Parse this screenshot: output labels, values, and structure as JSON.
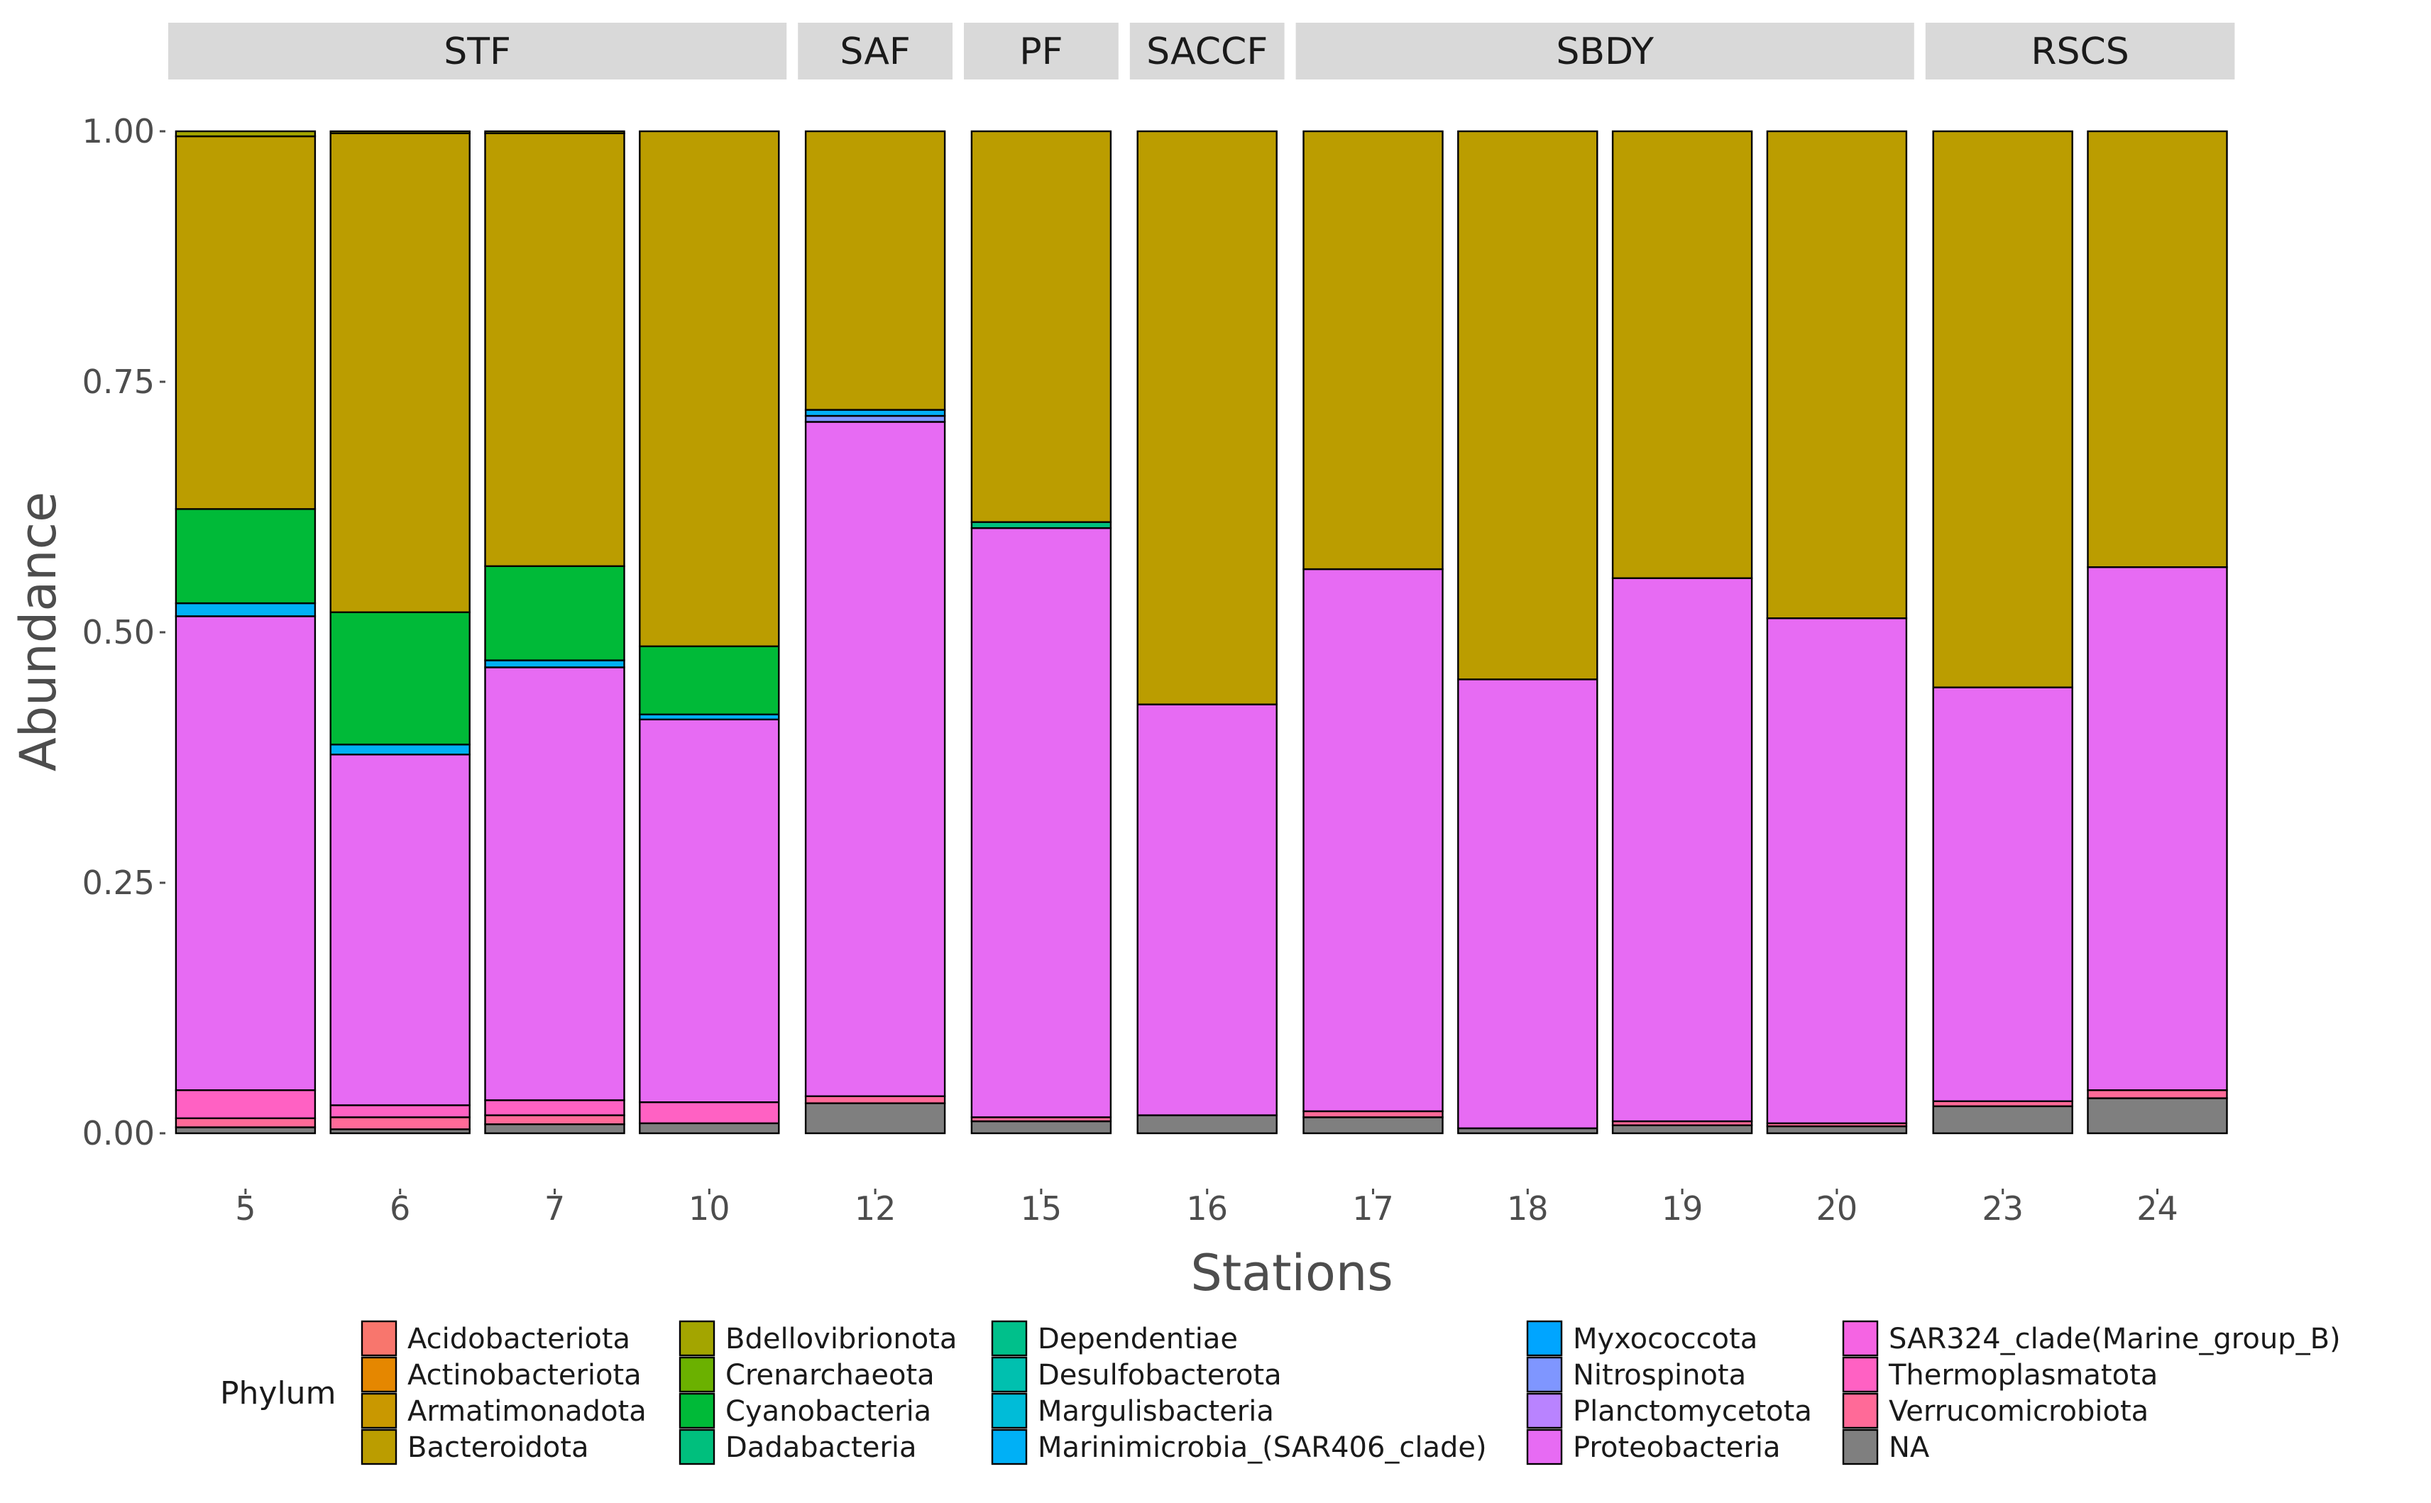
{
  "chart_data": {
    "type": "bar",
    "stacked": true,
    "xlabel": "Stations",
    "ylabel": "Abundance",
    "ylim": [
      0,
      1
    ],
    "y_ticks": [
      {
        "value": 0,
        "label": "0.00"
      },
      {
        "value": 0.25,
        "label": "0.25"
      },
      {
        "value": 0.5,
        "label": "0.50"
      },
      {
        "value": 0.75,
        "label": "0.75"
      },
      {
        "value": 1,
        "label": "1.00"
      }
    ],
    "legend_title": "Phylum",
    "legend_position": "bottom",
    "phyla": [
      {
        "name": "Acidobacteriota",
        "color": "#F8766D"
      },
      {
        "name": "Actinobacteriota",
        "color": "#E58700"
      },
      {
        "name": "Armatimonadota",
        "color": "#C99800"
      },
      {
        "name": "Bacteroidota",
        "color": "#BB9D00"
      },
      {
        "name": "Bdellovibrionota",
        "color": "#A3A500"
      },
      {
        "name": "Crenarchaeota",
        "color": "#6BB100"
      },
      {
        "name": "Cyanobacteria",
        "color": "#00BA38"
      },
      {
        "name": "Dadabacteria",
        "color": "#00BF7D"
      },
      {
        "name": "Dependentiae",
        "color": "#00C08B"
      },
      {
        "name": "Desulfobacterota",
        "color": "#00C0AF"
      },
      {
        "name": "Margulisbacteria",
        "color": "#00BCD8"
      },
      {
        "name": "Marinimicrobia_(SAR406_clade)",
        "color": "#00B0F6"
      },
      {
        "name": "Myxococcota",
        "color": "#00A5FF"
      },
      {
        "name": "Nitrospinota",
        "color": "#7F96FF"
      },
      {
        "name": "Planctomycetota",
        "color": "#B983FF"
      },
      {
        "name": "Proteobacteria",
        "color": "#E76BF3"
      },
      {
        "name": "SAR324_clade(Marine_group_B)",
        "color": "#F564E3"
      },
      {
        "name": "Thermoplasmatota",
        "color": "#FF61C3"
      },
      {
        "name": "Verrucomicrobiota",
        "color": "#FF6A98"
      },
      {
        "name": "NA",
        "color": "#7F7F7F"
      }
    ],
    "panels": [
      {
        "label": "STF",
        "stations": [
          {
            "station": "5",
            "segments": [
              {
                "phylum": "NA",
                "value": 0.006
              },
              {
                "phylum": "Verrucomicrobiota",
                "value": 0.009
              },
              {
                "phylum": "Thermoplasmatota",
                "value": 0.028
              },
              {
                "phylum": "Proteobacteria",
                "value": 0.473
              },
              {
                "phylum": "Marinimicrobia_(SAR406_clade)",
                "value": 0.013
              },
              {
                "phylum": "Cyanobacteria",
                "value": 0.094
              },
              {
                "phylum": "Bacteroidota",
                "value": 0.372
              },
              {
                "phylum": "Bdellovibrionota",
                "value": 0.005
              }
            ]
          },
          {
            "station": "6",
            "segments": [
              {
                "phylum": "NA",
                "value": 0.004
              },
              {
                "phylum": "Verrucomicrobiota",
                "value": 0.012
              },
              {
                "phylum": "Thermoplasmatota",
                "value": 0.012
              },
              {
                "phylum": "Proteobacteria",
                "value": 0.35
              },
              {
                "phylum": "Marinimicrobia_(SAR406_clade)",
                "value": 0.01
              },
              {
                "phylum": "Cyanobacteria",
                "value": 0.132
              },
              {
                "phylum": "Bacteroidota",
                "value": 0.478
              },
              {
                "phylum": "Bdellovibrionota",
                "value": 0.002
              }
            ]
          },
          {
            "station": "7",
            "segments": [
              {
                "phylum": "NA",
                "value": 0.009
              },
              {
                "phylum": "Verrucomicrobiota",
                "value": 0.009
              },
              {
                "phylum": "Thermoplasmatota",
                "value": 0.015
              },
              {
                "phylum": "Proteobacteria",
                "value": 0.432
              },
              {
                "phylum": "Marinimicrobia_(SAR406_clade)",
                "value": 0.007
              },
              {
                "phylum": "Cyanobacteria",
                "value": 0.094
              },
              {
                "phylum": "Bacteroidota",
                "value": 0.432
              },
              {
                "phylum": "Bdellovibrionota",
                "value": 0.002
              }
            ]
          },
          {
            "station": "10",
            "segments": [
              {
                "phylum": "NA",
                "value": 0.01
              },
              {
                "phylum": "Thermoplasmatota",
                "value": 0.021
              },
              {
                "phylum": "Proteobacteria",
                "value": 0.382
              },
              {
                "phylum": "Marinimicrobia_(SAR406_clade)",
                "value": 0.005
              },
              {
                "phylum": "Cyanobacteria",
                "value": 0.068
              },
              {
                "phylum": "Bacteroidota",
                "value": 0.514
              }
            ]
          }
        ]
      },
      {
        "label": "SAF",
        "stations": [
          {
            "station": "12",
            "segments": [
              {
                "phylum": "NA",
                "value": 0.03
              },
              {
                "phylum": "Verrucomicrobiota",
                "value": 0.007
              },
              {
                "phylum": "Proteobacteria",
                "value": 0.673
              },
              {
                "phylum": "Nitrospinota",
                "value": 0.006
              },
              {
                "phylum": "Marinimicrobia_(SAR406_clade)",
                "value": 0.006
              },
              {
                "phylum": "Bacteroidota",
                "value": 0.278
              }
            ]
          }
        ]
      },
      {
        "label": "PF",
        "stations": [
          {
            "station": "15",
            "segments": [
              {
                "phylum": "NA",
                "value": 0.012
              },
              {
                "phylum": "Verrucomicrobiota",
                "value": 0.004
              },
              {
                "phylum": "Proteobacteria",
                "value": 0.588
              },
              {
                "phylum": "Dadabacteria",
                "value": 0.006
              },
              {
                "phylum": "Bacteroidota",
                "value": 0.39
              }
            ]
          }
        ]
      },
      {
        "label": "SACCF",
        "stations": [
          {
            "station": "16",
            "segments": [
              {
                "phylum": "NA",
                "value": 0.018
              },
              {
                "phylum": "Proteobacteria",
                "value": 0.41
              },
              {
                "phylum": "Bacteroidota",
                "value": 0.572
              }
            ]
          }
        ]
      },
      {
        "label": "SBDY",
        "stations": [
          {
            "station": "17",
            "segments": [
              {
                "phylum": "NA",
                "value": 0.016
              },
              {
                "phylum": "Verrucomicrobiota",
                "value": 0.006
              },
              {
                "phylum": "Proteobacteria",
                "value": 0.541
              },
              {
                "phylum": "Bacteroidota",
                "value": 0.437
              }
            ]
          },
          {
            "station": "18",
            "segments": [
              {
                "phylum": "NA",
                "value": 0.005
              },
              {
                "phylum": "Proteobacteria",
                "value": 0.448
              },
              {
                "phylum": "Bacteroidota",
                "value": 0.547
              }
            ]
          },
          {
            "station": "19",
            "segments": [
              {
                "phylum": "NA",
                "value": 0.008
              },
              {
                "phylum": "Verrucomicrobiota",
                "value": 0.004
              },
              {
                "phylum": "Proteobacteria",
                "value": 0.542
              },
              {
                "phylum": "Bacteroidota",
                "value": 0.446
              }
            ]
          },
          {
            "station": "20",
            "segments": [
              {
                "phylum": "NA",
                "value": 0.007
              },
              {
                "phylum": "Verrucomicrobiota",
                "value": 0.003
              },
              {
                "phylum": "Proteobacteria",
                "value": 0.504
              },
              {
                "phylum": "Bacteroidota",
                "value": 0.486
              }
            ]
          }
        ]
      },
      {
        "label": "RSCS",
        "stations": [
          {
            "station": "23",
            "segments": [
              {
                "phylum": "NA",
                "value": 0.027
              },
              {
                "phylum": "Verrucomicrobiota",
                "value": 0.005
              },
              {
                "phylum": "Proteobacteria",
                "value": 0.413
              },
              {
                "phylum": "Bacteroidota",
                "value": 0.555
              }
            ]
          },
          {
            "station": "24",
            "segments": [
              {
                "phylum": "NA",
                "value": 0.035
              },
              {
                "phylum": "Verrucomicrobiota",
                "value": 0.008
              },
              {
                "phylum": "Proteobacteria",
                "value": 0.522
              },
              {
                "phylum": "Bacteroidota",
                "value": 0.435
              }
            ]
          }
        ]
      }
    ]
  }
}
